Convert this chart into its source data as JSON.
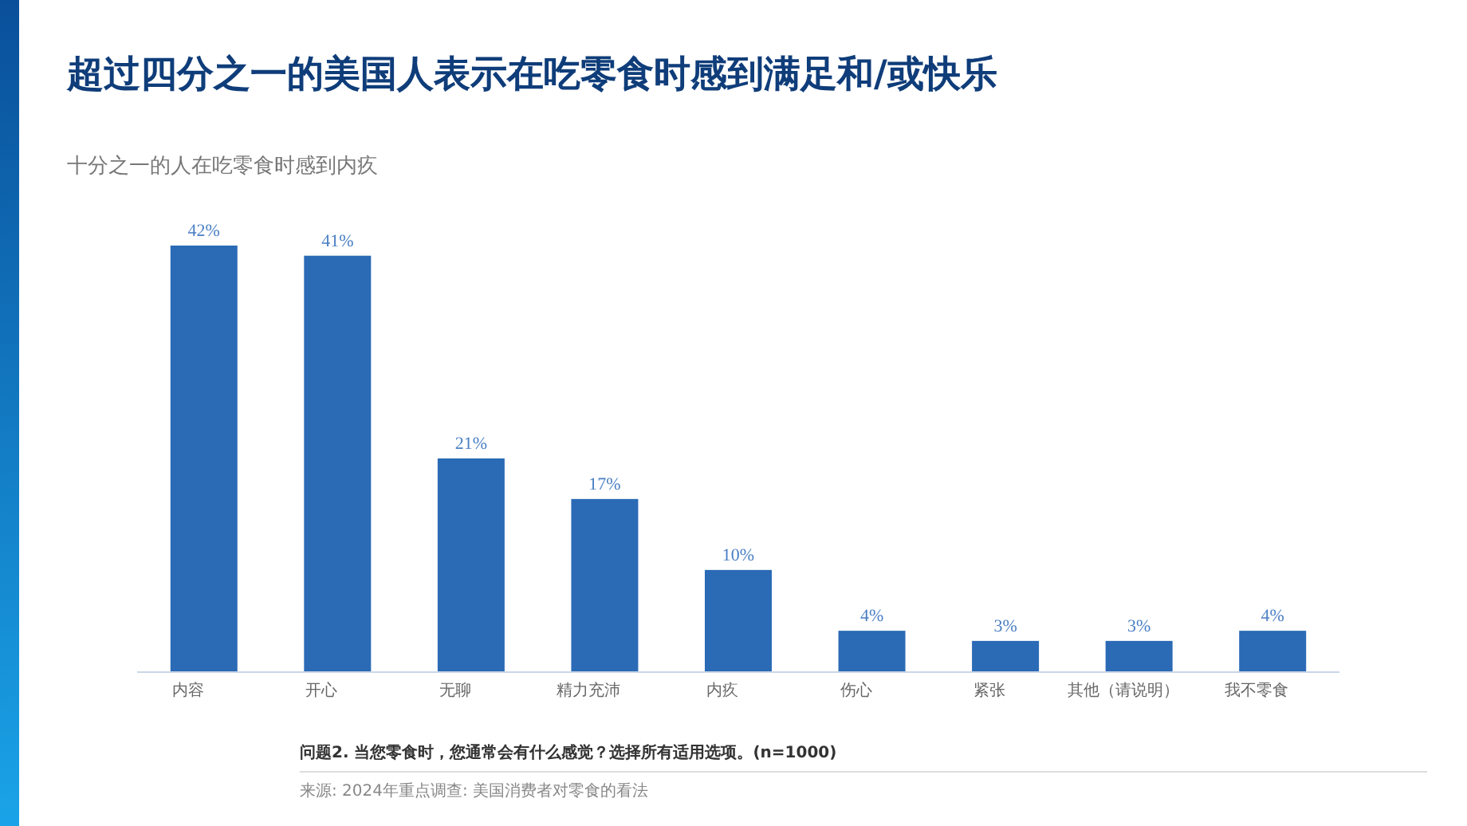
{
  "chart_data": {
    "type": "bar",
    "title": "超过四分之一的美国人表示在吃零食时感到满足和/或快乐",
    "subtitle": "十分之一的人在吃零食时感到内疚",
    "categories": [
      "内容",
      "开心",
      "无聊",
      "精力充沛",
      "内疚",
      "伤心",
      "紧张",
      "其他（请说明）",
      "我不零食"
    ],
    "values": [
      42,
      41,
      21,
      17,
      10,
      4,
      3,
      3,
      4
    ],
    "value_labels": [
      "42%",
      "41%",
      "21%",
      "17%",
      "10%",
      "4%",
      "3%",
      "3%",
      "4%"
    ],
    "color": "#2b6ab5",
    "annotations": [
      "问题2. 当您零食时，您通常会有什么感觉？选择所有适用选项。(n=1000)",
      "来源: 2024年重点调查: 美国消费者对零食的看法"
    ]
  }
}
